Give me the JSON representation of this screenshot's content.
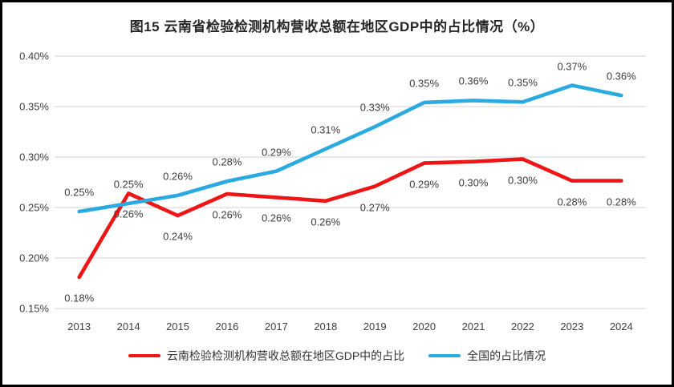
{
  "colors": {
    "yunnan": "#ed1515",
    "national": "#29abe2",
    "grid": "#dcdcdc",
    "axis_text": "#404040",
    "label_text": "#3d3d3d",
    "title_text": "#262626"
  },
  "chart_data": {
    "type": "line",
    "title": "图15 云南省检验检测机构营收总额在地区GDP中的占比情况（%）",
    "categories": [
      "2013",
      "2014",
      "2015",
      "2016",
      "2017",
      "2018",
      "2019",
      "2020",
      "2021",
      "2022",
      "2023",
      "2024"
    ],
    "series": [
      {
        "name": "云南检验检测机构营收总额在地区GDP中的占比",
        "color_key": "yunnan",
        "label_position": "below",
        "values": [
          0.181,
          0.264,
          0.242,
          0.2635,
          0.26,
          0.2565,
          0.271,
          0.294,
          0.2955,
          0.298,
          0.2765,
          0.2765
        ],
        "labels": [
          "0.18%",
          "0.26%",
          "0.24%",
          "0.26%",
          "0.26%",
          "0.26%",
          "0.27%",
          "0.29%",
          "0.30%",
          "0.30%",
          "0.28%",
          "0.28%"
        ]
      },
      {
        "name": "全国的占比情况",
        "color_key": "national",
        "label_position": "above",
        "values": [
          0.246,
          0.254,
          0.262,
          0.276,
          0.286,
          0.308,
          0.33,
          0.354,
          0.356,
          0.3545,
          0.371,
          0.361
        ],
        "labels": [
          "0.25%",
          "0.25%",
          "0.26%",
          "0.28%",
          "0.29%",
          "0.31%",
          "0.33%",
          "0.35%",
          "0.36%",
          "0.35%",
          "0.37%",
          "0.36%"
        ]
      }
    ],
    "yticks": [
      "0.40%",
      "0.35%",
      "0.30%",
      "0.25%",
      "0.20%",
      "0.15%"
    ],
    "ylim": [
      0.15,
      0.4
    ],
    "grid": true,
    "legend_position": "bottom",
    "xlabel": "",
    "ylabel": ""
  }
}
